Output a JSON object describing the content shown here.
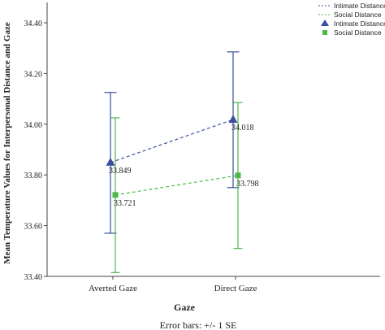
{
  "chart_data": {
    "type": "line",
    "xlabel": "Gaze",
    "ylabel": "Mean Temperature Values for Interpersonal Distance and Gaze",
    "note": "Error bars: +/- 1 SE",
    "categories": [
      "Averted Gaze",
      "Direct Gaze"
    ],
    "ylim": [
      33.4,
      34.48
    ],
    "yticks": [
      "33.40",
      "33.60",
      "33.80",
      "34.00",
      "34.20",
      "34.40"
    ],
    "legend_position": "top-right",
    "grid": false,
    "series": [
      {
        "name": "Intimate Distance",
        "values": [
          33.849,
          34.018
        ],
        "value_labels": [
          "33.849",
          "34.018"
        ],
        "error_low": [
          33.57,
          33.75
        ],
        "error_high": [
          34.125,
          34.285
        ],
        "color": "#3b4ea0",
        "marker": "triangle",
        "line_style": "dashed"
      },
      {
        "name": "Social Distance",
        "values": [
          33.721,
          33.798
        ],
        "value_labels": [
          "33.721",
          "33.798"
        ],
        "error_low": [
          33.415,
          33.51
        ],
        "error_high": [
          34.025,
          34.085
        ],
        "color": "#4fb84a",
        "marker": "square",
        "line_style": "dashed"
      }
    ],
    "legend": {
      "line_entries": [
        "Intimate Distance",
        "Social Distance"
      ],
      "marker_entries": [
        "Intimate Distance",
        "Social Distance"
      ]
    }
  }
}
